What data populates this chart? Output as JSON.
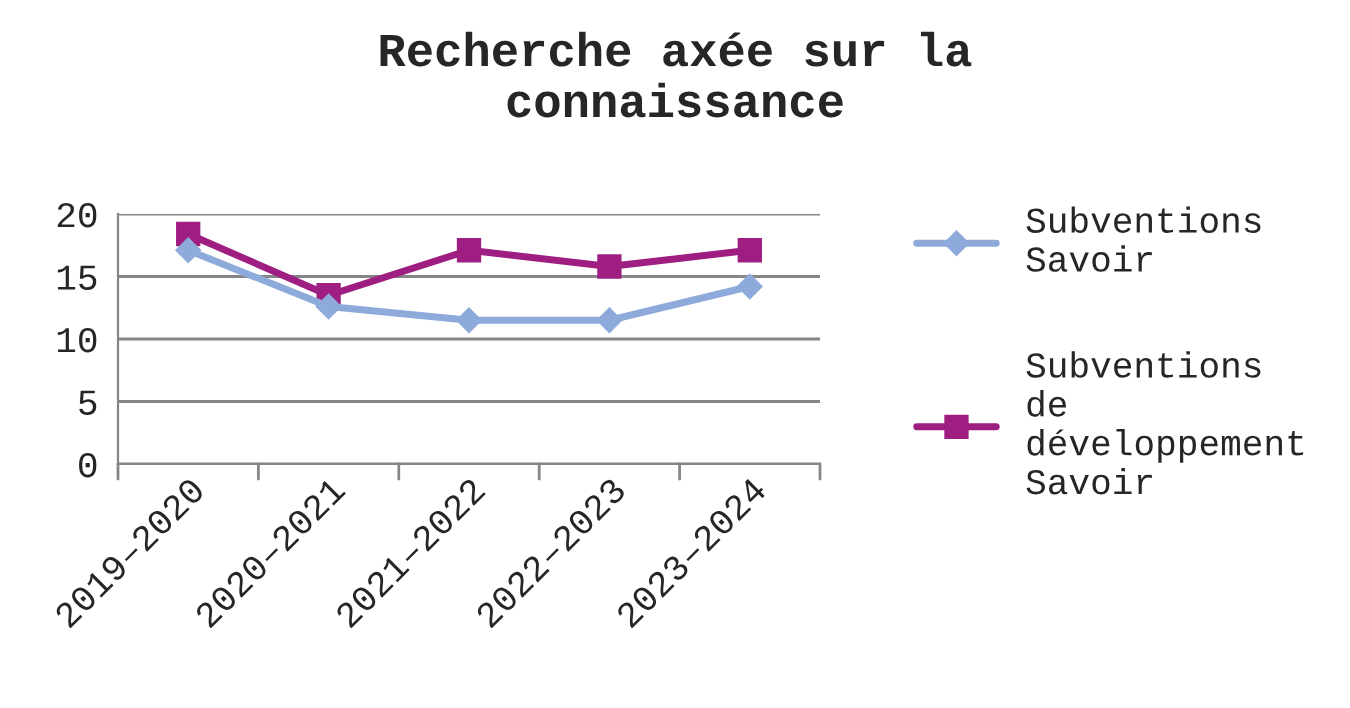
{
  "chart_data": {
    "type": "line",
    "title": "Recherche axée sur la connaissance",
    "categories": [
      "2019–2020",
      "2020–2021",
      "2021–2022",
      "2022–2023",
      "2023–2024"
    ],
    "series": [
      {
        "name": "Subventions Savoir",
        "color": "#8eaadb",
        "values": [
          17.1,
          12.6,
          11.5,
          11.5,
          14.2
        ],
        "marker": "diamond"
      },
      {
        "name": "Subventions de développement Savoir",
        "color": "#9e1e82",
        "values": [
          18.4,
          13.5,
          17.1,
          15.8,
          17.1
        ],
        "marker": "square"
      }
    ],
    "ylim": [
      0,
      20
    ],
    "yticks": [
      0,
      5,
      10,
      15,
      20
    ],
    "grid": "y",
    "legend": "right"
  }
}
